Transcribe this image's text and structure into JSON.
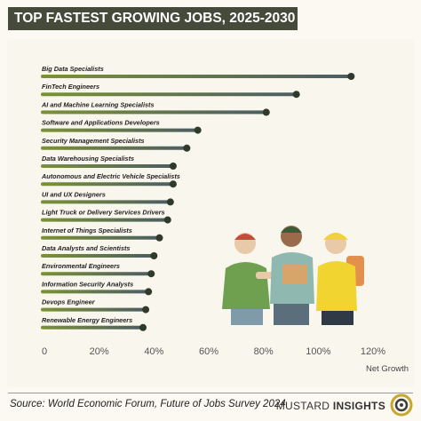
{
  "header": {
    "title": "TOP FASTEST GROWING JOBS, 2025-2030"
  },
  "footer": {
    "source": "Source: World Economic Forum, Future of Jobs Survey 2024",
    "brand_light": "MUSTARD",
    "brand_bold": "INSIGHTS"
  },
  "colors": {
    "bar_gradient": [
      "#7a9235",
      "#4c5d63"
    ],
    "bar_dot": "#2f3a2b",
    "title_bg": "#464a3a"
  },
  "chart_data": {
    "type": "bar",
    "orientation": "horizontal",
    "style": "lollipop",
    "title": "TOP FASTEST GROWING JOBS, 2025-2030",
    "xlabel": "Net Growth",
    "ylabel": "",
    "xlim": [
      0,
      120
    ],
    "xticks": [
      0,
      20,
      40,
      60,
      80,
      100,
      120
    ],
    "xtick_labels": [
      "0",
      "20%",
      "40%",
      "60%",
      "80%",
      "100%",
      "120%"
    ],
    "grid": false,
    "legend": "none",
    "categories": [
      "Big Data Specialists",
      "FinTech Engineers",
      "AI and Machine Learning Specialists",
      "Software and Applications Developers",
      "Security Management Specialists",
      "Data Warehousing Specialists",
      "Autonomous and Electric Vehicle Specialists",
      "UI and UX Designers",
      "Light Truck or Delivery Services Drivers",
      "Internet of Things Specialists",
      "Data Analysts and Scientists",
      "Environmental Engineers",
      "Information Security Analysts",
      "Devops Engineer",
      "Renewable Energy Engineers"
    ],
    "values": [
      112,
      92,
      81,
      56,
      52,
      47,
      47,
      46,
      45,
      42,
      40,
      39,
      38,
      37,
      36
    ]
  }
}
